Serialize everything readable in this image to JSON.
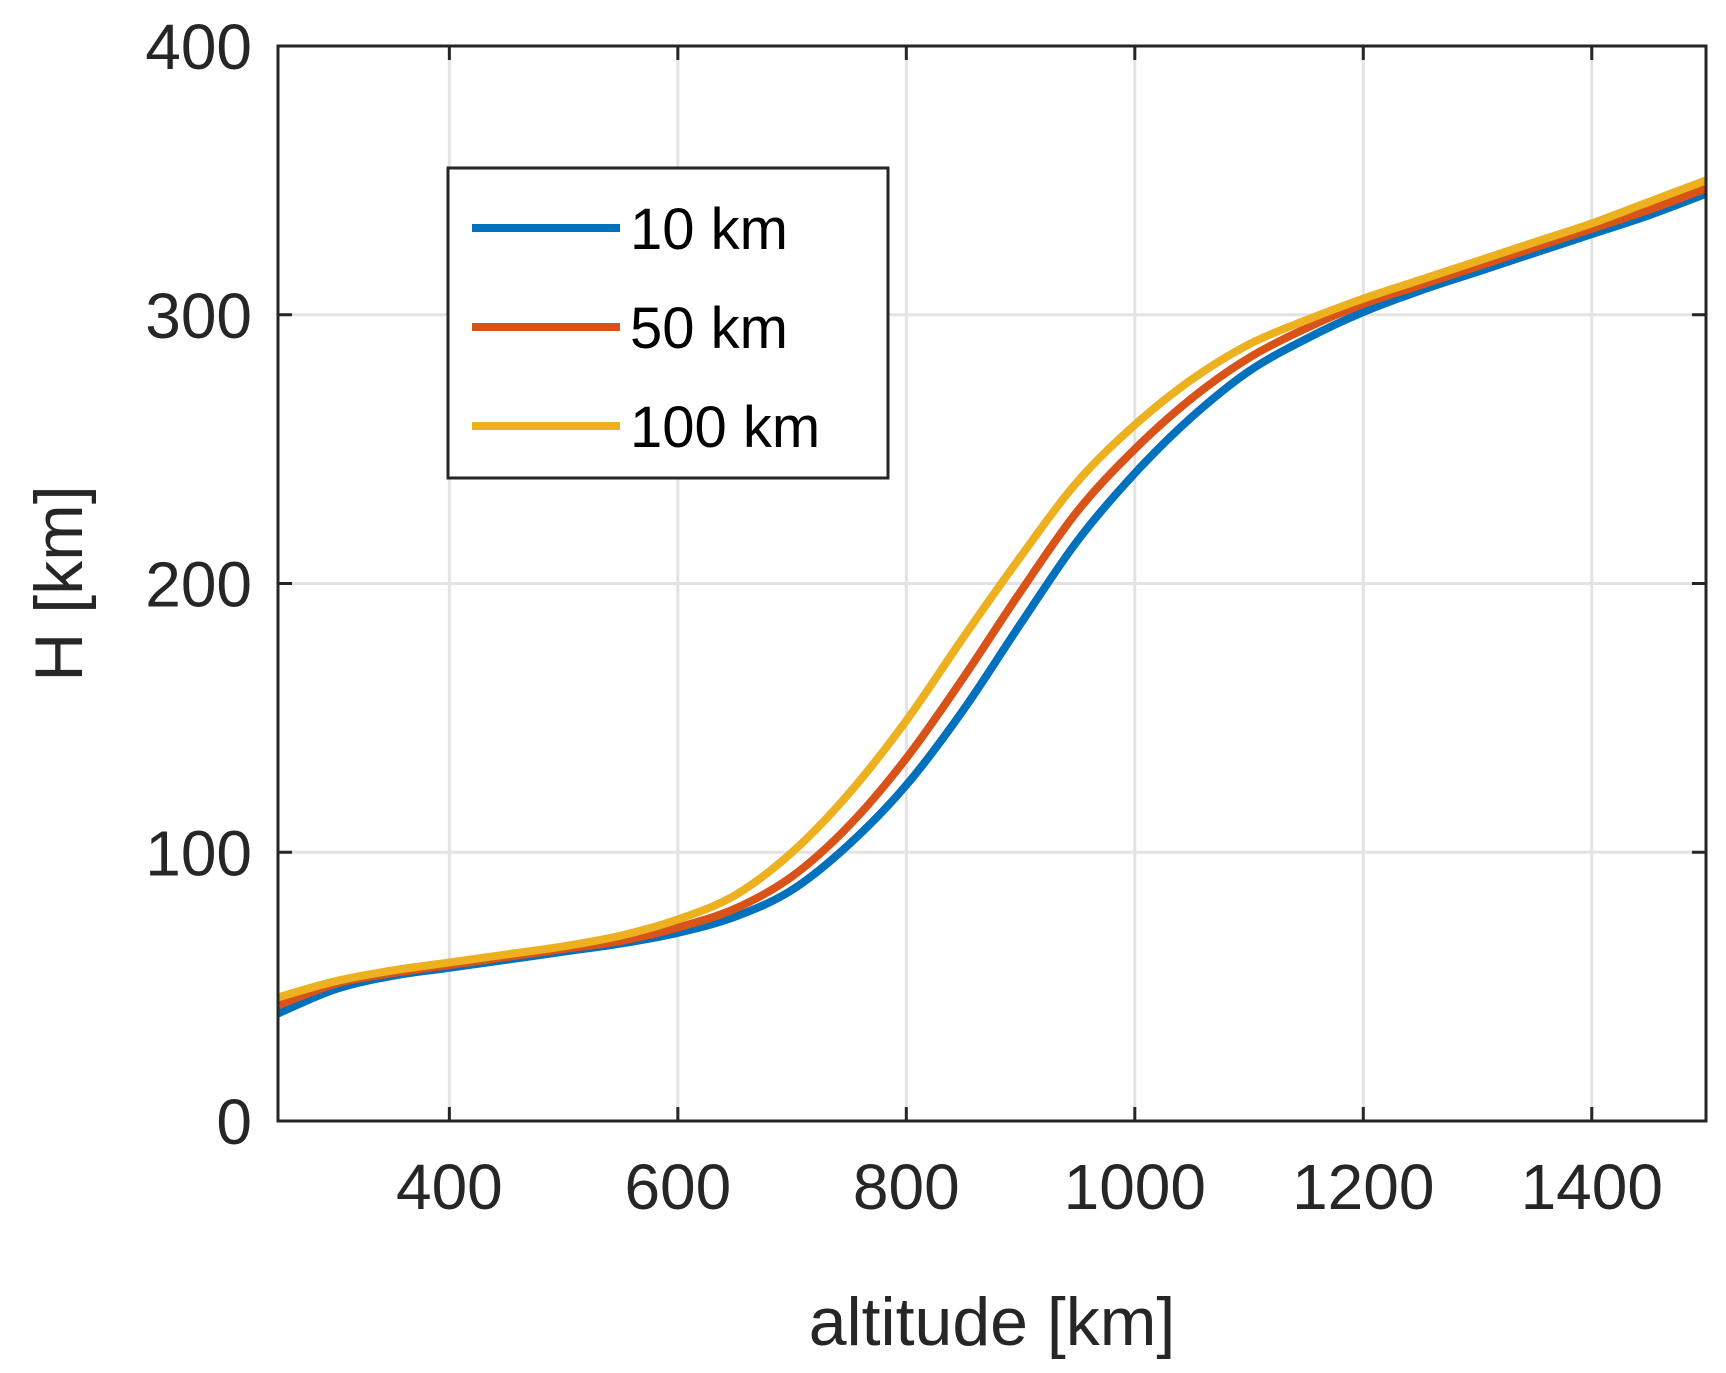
{
  "chart_data": {
    "type": "line",
    "xlabel": "altitude [km]",
    "ylabel": "H [km]",
    "xlim": [
      250,
      1500
    ],
    "ylim": [
      0,
      400
    ],
    "xticks": [
      400,
      600,
      800,
      1000,
      1200,
      1400
    ],
    "yticks": [
      0,
      100,
      200,
      300,
      400
    ],
    "grid": true,
    "legend_position": "top-left",
    "x": [
      250,
      300,
      350,
      400,
      450,
      500,
      550,
      600,
      650,
      700,
      750,
      800,
      850,
      900,
      950,
      1000,
      1050,
      1100,
      1150,
      1200,
      1250,
      1300,
      1350,
      1400,
      1450,
      1500
    ],
    "series": [
      {
        "name": "10 km",
        "color": "#0072BD",
        "values": [
          40,
          49,
          54,
          57,
          60,
          63,
          66,
          70,
          76,
          86,
          103,
          125,
          153,
          185,
          216,
          241,
          262,
          279,
          291,
          301,
          309,
          316,
          323,
          330,
          337,
          345
        ]
      },
      {
        "name": "50 km",
        "color": "#D95319",
        "values": [
          43,
          51,
          55,
          58,
          61,
          64,
          67,
          72,
          79,
          91,
          110,
          135,
          165,
          197,
          227,
          250,
          269,
          284,
          295,
          304,
          311,
          318,
          325,
          332,
          339,
          347
        ]
      },
      {
        "name": "100 km",
        "color": "#EDB120",
        "values": [
          46,
          52,
          56,
          59,
          62,
          65,
          69,
          75,
          84,
          100,
          122,
          149,
          180,
          210,
          238,
          259,
          276,
          289,
          298,
          306,
          313,
          320,
          327,
          334,
          342,
          350
        ]
      }
    ]
  }
}
